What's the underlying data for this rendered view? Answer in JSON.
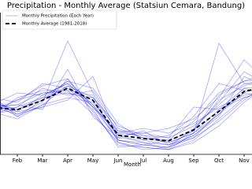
{
  "chart_data": {
    "type": "line",
    "title": "Precipitation - Monthly Average (Statsiun Cemara, Bandung)",
    "x_label": "Month",
    "categories": [
      null,
      "Feb",
      "Mar",
      "Apr",
      "May",
      "Jun",
      "Jul",
      "Aug",
      "Sep",
      "Oct",
      "Nov",
      null
    ],
    "ylim": [
      0,
      600
    ],
    "legend": "upper left",
    "yearly": {
      "name": "Monthly Precipitation (Each Year)",
      "color": "#0000ff",
      "values": [
        [
          210,
          180,
          250,
          300,
          210,
          60,
          40,
          30,
          80,
          170,
          260,
          300
        ],
        [
          190,
          230,
          260,
          260,
          240,
          100,
          90,
          70,
          120,
          210,
          300,
          280
        ],
        [
          230,
          170,
          200,
          320,
          180,
          40,
          30,
          20,
          60,
          150,
          240,
          270
        ],
        [
          170,
          200,
          280,
          250,
          270,
          110,
          70,
          60,
          140,
          260,
          310,
          320
        ],
        [
          250,
          160,
          230,
          290,
          200,
          90,
          80,
          50,
          90,
          190,
          280,
          250
        ],
        [
          200,
          210,
          190,
          360,
          160,
          70,
          100,
          40,
          70,
          140,
          230,
          310
        ],
        [
          160,
          240,
          270,
          270,
          250,
          50,
          20,
          30,
          110,
          220,
          350,
          290
        ],
        [
          220,
          190,
          240,
          310,
          280,
          130,
          60,
          80,
          160,
          300,
          270,
          260
        ],
        [
          180,
          150,
          210,
          240,
          220,
          80,
          50,
          20,
          50,
          120,
          220,
          300
        ],
        [
          240,
          220,
          300,
          280,
          190,
          30,
          40,
          60,
          100,
          230,
          290,
          330
        ],
        [
          200,
          170,
          220,
          480,
          260,
          90,
          110,
          90,
          130,
          200,
          250,
          270
        ],
        [
          190,
          200,
          240,
          260,
          230,
          70,
          60,
          40,
          80,
          160,
          330,
          280
        ],
        [
          210,
          260,
          250,
          300,
          200,
          100,
          70,
          50,
          90,
          470,
          300,
          310
        ],
        [
          230,
          180,
          200,
          230,
          330,
          60,
          40,
          30,
          70,
          180,
          260,
          240
        ],
        [
          170,
          190,
          230,
          310,
          210,
          80,
          90,
          110,
          150,
          240,
          400,
          300
        ],
        [
          200,
          210,
          260,
          270,
          170,
          50,
          30,
          20,
          90,
          170,
          280,
          290
        ],
        [
          220,
          160,
          210,
          290,
          240,
          120,
          80,
          70,
          200,
          190,
          240,
          270
        ],
        [
          180,
          230,
          290,
          320,
          200,
          60,
          50,
          40,
          100,
          250,
          310,
          350
        ]
      ]
    },
    "average": {
      "name": "Monthly Average (1981-2018)",
      "color": "#000000",
      "values": [
        199,
        189,
        229,
        280,
        229,
        81,
        67,
        57,
        104,
        182,
        266,
        290
      ]
    }
  }
}
